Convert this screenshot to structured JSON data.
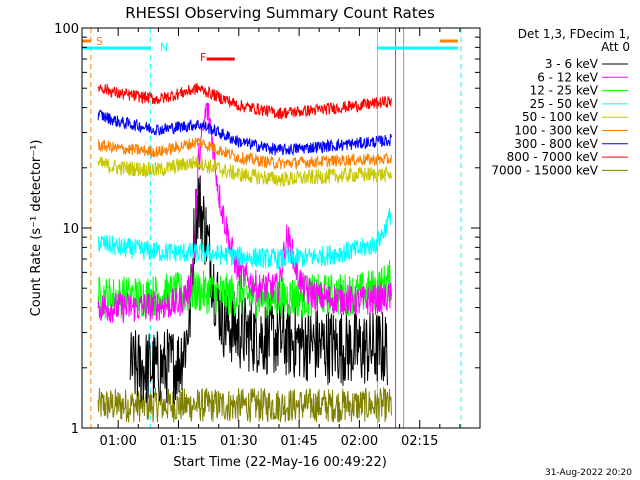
{
  "chart_data": {
    "type": "line",
    "title": "RHESSI Observing Summary Count Rates",
    "xlabel": "Start Time (22-May-16 00:49:22)",
    "ylabel": "Count Rate (s⁻¹ detector⁻¹)",
    "yscale": "log",
    "ylim": [
      1,
      100
    ],
    "xlim_minutes": [
      51,
      150
    ],
    "x_ticks": [
      {
        "m": 60,
        "label": "01:00"
      },
      {
        "m": 75,
        "label": "01:15"
      },
      {
        "m": 90,
        "label": "01:30"
      },
      {
        "m": 105,
        "label": "01:45"
      },
      {
        "m": 120,
        "label": "02:00"
      },
      {
        "m": 135,
        "label": "02:15"
      }
    ],
    "y_ticks": [
      {
        "v": 1,
        "label": "1"
      },
      {
        "v": 10,
        "label": "10"
      },
      {
        "v": 100,
        "label": "100"
      }
    ],
    "legend_title": [
      "Det 1,3, FDecim 1,",
      "Att 0"
    ],
    "legend_position": "right",
    "series": [
      {
        "name": "3 - 6 keV",
        "color": "#000000",
        "x": [
          63,
          70,
          75,
          77,
          78,
          79,
          80,
          82,
          84,
          86,
          90,
          100,
          110,
          120,
          127
        ],
        "y": [
          2.0,
          2.0,
          2.1,
          2.8,
          4.0,
          10.0,
          14.0,
          9.0,
          5.0,
          3.5,
          3.0,
          2.8,
          2.6,
          2.5,
          2.5
        ]
      },
      {
        "name": "6 - 12 keV",
        "color": "#ff00ff",
        "x": [
          55,
          65,
          75,
          78,
          79,
          80,
          81,
          82,
          83,
          84,
          85,
          86,
          88,
          90,
          95,
          100,
          101,
          102,
          103,
          104,
          106,
          110,
          120,
          128
        ],
        "y": [
          4.0,
          4.0,
          4.2,
          5.0,
          8.0,
          22.0,
          30.0,
          40.0,
          33.0,
          22.0,
          15.0,
          12.0,
          8.0,
          6.0,
          5.0,
          5.0,
          7.0,
          9.0,
          8.0,
          6.5,
          5.0,
          4.5,
          4.3,
          4.5
        ]
      },
      {
        "name": "12 - 25 keV",
        "color": "#00ff00",
        "x": [
          55,
          60,
          70,
          80,
          90,
          100,
          110,
          120,
          125,
          128
        ],
        "y": [
          4.5,
          4.5,
          4.6,
          4.8,
          4.6,
          4.5,
          4.6,
          4.7,
          5.0,
          5.5
        ]
      },
      {
        "name": "25 - 50 keV",
        "color": "#00ffff",
        "x": [
          55,
          60,
          70,
          80,
          90,
          100,
          110,
          115,
          120,
          124,
          126,
          128
        ],
        "y": [
          8.5,
          8.0,
          7.6,
          7.5,
          7.2,
          7.0,
          7.2,
          7.5,
          7.8,
          8.3,
          9.5,
          12.0
        ]
      },
      {
        "name": "50 - 100 keV",
        "color": "#c8c800",
        "x": [
          55,
          60,
          70,
          80,
          82,
          90,
          100,
          110,
          120,
          128
        ],
        "y": [
          21.0,
          20.0,
          19.5,
          21.5,
          20.5,
          18.5,
          17.5,
          18.0,
          18.5,
          18.5
        ]
      },
      {
        "name": "100 - 300 keV",
        "color": "#ff8000",
        "x": [
          55,
          60,
          70,
          80,
          82,
          90,
          100,
          110,
          120,
          128
        ],
        "y": [
          26.0,
          25.0,
          24.0,
          27.0,
          26.0,
          22.5,
          21.0,
          21.5,
          22.0,
          22.0
        ]
      },
      {
        "name": "300 - 800 keV",
        "color": "#0000ff",
        "x": [
          55,
          60,
          70,
          80,
          82,
          90,
          100,
          110,
          120,
          128
        ],
        "y": [
          37.0,
          34.0,
          31.0,
          33.0,
          32.0,
          27.0,
          24.5,
          25.5,
          26.5,
          27.5
        ]
      },
      {
        "name": "800 - 7000 keV",
        "color": "#ff0000",
        "x": [
          55,
          60,
          70,
          80,
          82,
          90,
          100,
          110,
          120,
          128
        ],
        "y": [
          51.0,
          47.0,
          44.0,
          50.0,
          48.0,
          41.0,
          37.5,
          39.0,
          41.0,
          43.0
        ]
      },
      {
        "name": "7000 - 15000 keV",
        "color": "#808000",
        "x": [
          55,
          60,
          70,
          80,
          90,
          100,
          110,
          120,
          128
        ],
        "y": [
          1.3,
          1.3,
          1.3,
          1.3,
          1.3,
          1.3,
          1.3,
          1.3,
          1.3
        ]
      }
    ],
    "annotations": [
      {
        "label": "S",
        "color": "#ff8000"
      },
      {
        "label": "N",
        "color": "#00ffff"
      },
      {
        "label": "F",
        "color": "#ff0000"
      }
    ],
    "timestamp": "31-Aug-2022 20:20"
  }
}
